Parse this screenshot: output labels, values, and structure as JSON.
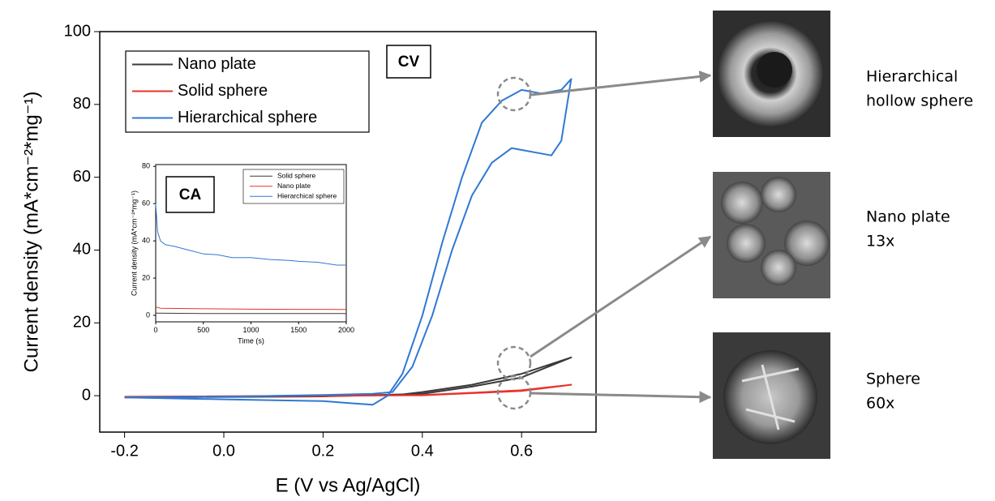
{
  "chart_data": [
    {
      "type": "line",
      "x_label": "E (V vs Ag/AgCl)",
      "y_label": "Current density (mA*cm⁻²*mg⁻¹)",
      "annotation": "CV",
      "xlim": [
        -0.25,
        0.75
      ],
      "ylim": [
        -10,
        100
      ],
      "xticks": [
        -0.2,
        {
          "value": 0,
          "label": "0.0"
        },
        0.2,
        0.4,
        0.6
      ],
      "yticks": [
        0,
        20,
        40,
        60,
        80,
        100
      ],
      "series": [
        {
          "name": "Nano plate",
          "color": "#3a3a3a",
          "x": [
            -0.2,
            0,
            0.2,
            0.35,
            0.4,
            0.5,
            0.6,
            0.7,
            0.6,
            0.5,
            0.4,
            0.2,
            -0.2
          ],
          "values": [
            -0.5,
            -0.3,
            0,
            0.2,
            1,
            3,
            6,
            10.5,
            5,
            2.5,
            0.5,
            -0.2,
            -0.5
          ]
        },
        {
          "name": "Solid sphere",
          "color": "#e8322b",
          "x": [
            -0.2,
            0.2,
            0.4,
            0.5,
            0.6,
            0.7,
            0.6,
            0.4,
            -0.2
          ],
          "values": [
            -0.3,
            -0.1,
            0.2,
            0.8,
            1.5,
            3,
            1.3,
            0.1,
            -0.3
          ]
        },
        {
          "name": "Hierarchical sphere",
          "color": "#2f78d4",
          "x": [
            -0.2,
            0,
            0.2,
            0.3,
            0.34,
            0.38,
            0.42,
            0.46,
            0.5,
            0.54,
            0.58,
            0.62,
            0.66,
            0.68,
            0.7,
            0.68,
            0.64,
            0.6,
            0.56,
            0.52,
            0.48,
            0.44,
            0.4,
            0.36,
            0.33,
            0.3,
            0.25,
            0.2,
            0,
            -0.2
          ],
          "values": [
            -0.5,
            -0.3,
            0.2,
            0.5,
            1,
            8,
            22,
            40,
            55,
            64,
            68,
            67,
            66,
            70,
            87,
            84,
            83,
            84,
            81,
            75,
            60,
            42,
            22,
            6,
            0,
            -2.5,
            -2,
            -1.5,
            -1,
            -0.5
          ]
        }
      ]
    },
    {
      "type": "line",
      "x_label": "Time (s)",
      "y_label": "Current density (mA*cm⁻²*mg⁻¹)",
      "annotation": "CA",
      "xlim": [
        0,
        2000
      ],
      "ylim": [
        -3.5,
        81
      ],
      "xticks": [
        0,
        500,
        1000,
        1500,
        2000
      ],
      "yticks": [
        0,
        20,
        40,
        60,
        80
      ],
      "series": [
        {
          "name": "Solid sphere",
          "color": "#3a3a3a",
          "x": [
            0,
            500,
            1000,
            1500,
            2000
          ],
          "values": [
            1.2,
            1,
            1,
            1,
            1
          ]
        },
        {
          "name": "Nano plate",
          "color": "#e8322b",
          "x": [
            0,
            50,
            500,
            1000,
            1500,
            2000
          ],
          "values": [
            4.5,
            3.8,
            3.5,
            3.3,
            3.2,
            3.1
          ]
        },
        {
          "name": "Hierarchical sphere",
          "color": "#2f78d4",
          "x": [
            0,
            20,
            50,
            100,
            200,
            350,
            500,
            650,
            800,
            1000,
            1200,
            1400,
            1500,
            1700,
            1900,
            2000
          ],
          "values": [
            60,
            45,
            40,
            38,
            37,
            35,
            33,
            32.5,
            31,
            31,
            30,
            29.5,
            29,
            28.5,
            27,
            27
          ]
        }
      ]
    }
  ],
  "images": [
    {
      "lines": [
        "Hierarchical",
        "hollow sphere"
      ]
    },
    {
      "lines": [
        "Nano plate",
        "13x"
      ]
    },
    {
      "lines": [
        "Sphere",
        "60x"
      ]
    }
  ]
}
